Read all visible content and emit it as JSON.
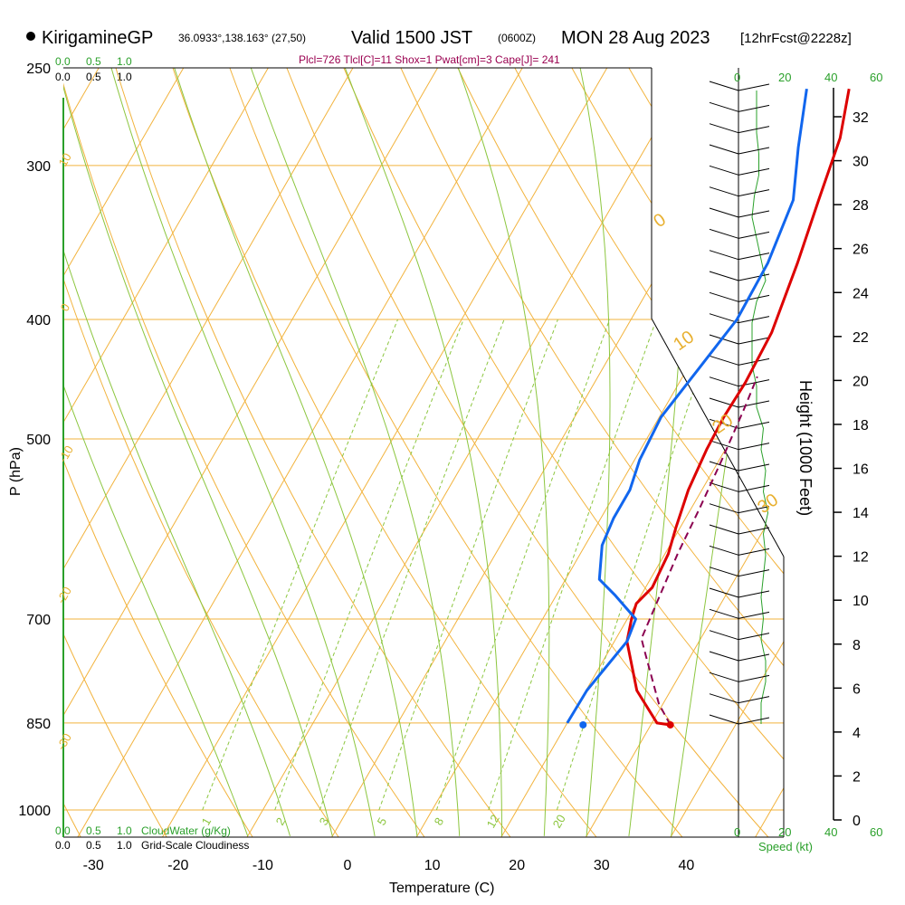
{
  "header": {
    "station": "KirigamineGP",
    "coords": "36.0933°,138.163° (27,50)",
    "valid": "Valid 1500 JST",
    "utc": "(0600Z)",
    "date": "MON 28 Aug 2023",
    "forecast": "[12hrFcst@2228z]"
  },
  "params_line": "Plcl=726 Tlcl[C]=11 Shox=1 Pwat[cm]=3 Cape[J]= 241",
  "cloud_scale": {
    "labels": [
      "0.0",
      "0.5",
      "1.0"
    ]
  },
  "cloudwater_label": "CloudWater (g/Kg)",
  "cloudiness_label": "Grid-Scale Cloudiness",
  "speed_label": "Speed (kt)",
  "wind_speed_ticks": [
    "0",
    "20",
    "40",
    "60"
  ],
  "colors": {
    "temperature": "#dd0000",
    "dewpoint": "#1166ee",
    "parcel": "#8b0050",
    "isotherm": "#f2b33d",
    "moist": "#8cc63f",
    "green": "#2aa02a"
  },
  "chart_data": {
    "type": "line",
    "title": "KirigamineGP Valid 1500 JST MON 28 Aug 2023",
    "xlabel": "Temperature (C)",
    "ylabel": "P (hPa)",
    "y2label": "Height (1000 Feet)",
    "x_ticks": [
      -30,
      -20,
      -10,
      0,
      10,
      20,
      30,
      40
    ],
    "p_ticks": [
      250,
      300,
      400,
      500,
      700,
      850,
      1000
    ],
    "height_ticks": [
      0,
      2,
      4,
      6,
      8,
      10,
      12,
      14,
      16,
      18,
      20,
      22,
      24,
      26,
      28,
      30,
      32
    ],
    "dry_adiabat_labels": [
      "10",
      "0",
      "-10",
      "-20",
      "-30",
      "0",
      "10",
      "20",
      "30"
    ],
    "mixing_ratio_labels": [
      "1",
      "2",
      "3",
      "5",
      "8",
      "12",
      "20"
    ],
    "series": [
      {
        "name": "Temperature",
        "points": [
          [
            32.3,
            853
          ],
          [
            30.6,
            850
          ],
          [
            26.0,
            800
          ],
          [
            21.5,
            730
          ],
          [
            20.5,
            700
          ],
          [
            20.0,
            680
          ],
          [
            20.8,
            660
          ],
          [
            20.4,
            620
          ],
          [
            19.5,
            590
          ],
          [
            18.4,
            550
          ],
          [
            17.8,
            510
          ],
          [
            17.6,
            480
          ],
          [
            17.8,
            450
          ],
          [
            17.5,
            410
          ],
          [
            15.8,
            360
          ],
          [
            14.0,
            320
          ],
          [
            12.3,
            285
          ],
          [
            10.0,
            260
          ]
        ]
      },
      {
        "name": "Dewpoint",
        "points": [
          [
            20.0,
            850
          ],
          [
            20.1,
            800
          ],
          [
            21.5,
            730
          ],
          [
            21.0,
            700
          ],
          [
            17.0,
            670
          ],
          [
            14.0,
            650
          ],
          [
            12.0,
            610
          ],
          [
            11.5,
            580
          ],
          [
            11.5,
            550
          ],
          [
            10.6,
            520
          ],
          [
            10.2,
            480
          ],
          [
            11.3,
            440
          ],
          [
            12.5,
            400
          ],
          [
            12.3,
            360
          ],
          [
            11.0,
            320
          ],
          [
            8.0,
            290
          ],
          [
            5.0,
            260
          ]
        ]
      },
      {
        "name": "Parcel",
        "points": [
          [
            32.3,
            853
          ],
          [
            29.5,
            820
          ],
          [
            24.0,
            740
          ],
          [
            23.0,
            726
          ],
          [
            21.5,
            620
          ],
          [
            21.0,
            570
          ],
          [
            20.3,
            520
          ],
          [
            19.4,
            470
          ],
          [
            18.8,
            445
          ]
        ]
      }
    ],
    "surface_points": {
      "temperature_c": 32.3,
      "dewpoint_c": 22.0,
      "pressure_hpa": 853
    },
    "wind_profile_speeds_kt": [
      10,
      10,
      12,
      12,
      10,
      11,
      10,
      11,
      12,
      11,
      13,
      11,
      12,
      10,
      11,
      8,
      8,
      6,
      6,
      6,
      8,
      12,
      10,
      8,
      6,
      7,
      9,
      9,
      8,
      8,
      8
    ]
  }
}
